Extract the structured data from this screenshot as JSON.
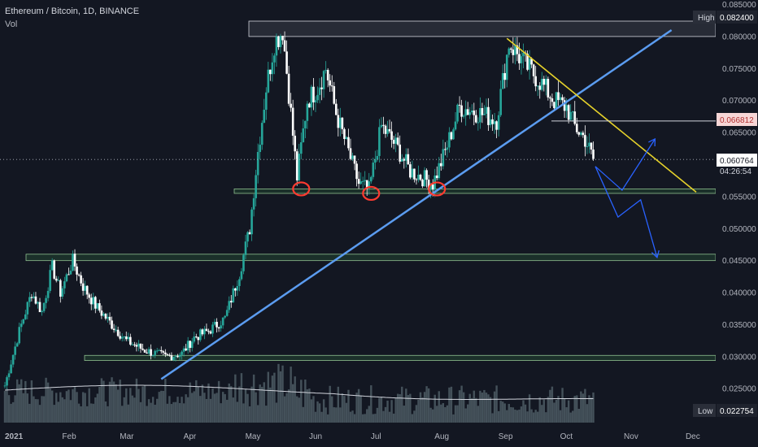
{
  "header": {
    "title": "Ethereum / Bitcoin, 1D, BINANCE",
    "volume_label": "Vol"
  },
  "chart_data": {
    "type": "candlestick",
    "symbol": "ETHBTC",
    "y_ticks": [
      "0.085000",
      "0.080000",
      "0.075000",
      "0.070000",
      "0.065000",
      "0.055000",
      "0.050000",
      "0.045000",
      "0.040000",
      "0.035000",
      "0.030000",
      "0.025000"
    ],
    "y_tick_values": [
      0.085,
      0.08,
      0.075,
      0.07,
      0.065,
      0.055,
      0.05,
      0.045,
      0.04,
      0.035,
      0.03,
      0.025
    ],
    "x_ticks": [
      "2021",
      "Feb",
      "Mar",
      "Apr",
      "May",
      "Jun",
      "Jul",
      "Aug",
      "Sep",
      "Oct",
      "Nov",
      "Dec"
    ],
    "ylim": [
      0.0197,
      0.0857
    ],
    "high": {
      "label": "High",
      "value": "0.082400"
    },
    "low": {
      "label": "Low",
      "value": "0.022754"
    },
    "current_price": "0.060764",
    "countdown": "04:26:54",
    "marked_level": "0.066812",
    "close_path": [
      [
        "2021-01-01",
        0.0255
      ],
      [
        "2021-01-08",
        0.034
      ],
      [
        "2021-01-14",
        0.04
      ],
      [
        "2021-01-19",
        0.037
      ],
      [
        "2021-01-24",
        0.044
      ],
      [
        "2021-01-28",
        0.04
      ],
      [
        "2021-02-03",
        0.045
      ],
      [
        "2021-02-08",
        0.041
      ],
      [
        "2021-02-14",
        0.038
      ],
      [
        "2021-02-22",
        0.035
      ],
      [
        "2021-03-01",
        0.0325
      ],
      [
        "2021-03-10",
        0.031
      ],
      [
        "2021-03-20",
        0.03
      ],
      [
        "2021-03-28",
        0.0305
      ],
      [
        "2021-04-03",
        0.033
      ],
      [
        "2021-04-10",
        0.034
      ],
      [
        "2021-04-18",
        0.036
      ],
      [
        "2021-04-25",
        0.043
      ],
      [
        "2021-04-30",
        0.05
      ],
      [
        "2021-05-04",
        0.062
      ],
      [
        "2021-05-08",
        0.072
      ],
      [
        "2021-05-12",
        0.079
      ],
      [
        "2021-05-16",
        0.081
      ],
      [
        "2021-05-20",
        0.068
      ],
      [
        "2021-05-23",
        0.058
      ],
      [
        "2021-05-28",
        0.07
      ],
      [
        "2021-06-02",
        0.072
      ],
      [
        "2021-06-06",
        0.075
      ],
      [
        "2021-06-11",
        0.068
      ],
      [
        "2021-06-16",
        0.063
      ],
      [
        "2021-06-22",
        0.057
      ],
      [
        "2021-06-27",
        0.056
      ],
      [
        "2021-07-03",
        0.066
      ],
      [
        "2021-07-10",
        0.063
      ],
      [
        "2021-07-17",
        0.059
      ],
      [
        "2021-07-23",
        0.058
      ],
      [
        "2021-07-28",
        0.057
      ],
      [
        "2021-08-03",
        0.062
      ],
      [
        "2021-08-10",
        0.069
      ],
      [
        "2021-08-20",
        0.068
      ],
      [
        "2021-08-28",
        0.067
      ],
      [
        "2021-09-03",
        0.079
      ],
      [
        "2021-09-10",
        0.076
      ],
      [
        "2021-09-18",
        0.073
      ],
      [
        "2021-09-25",
        0.07
      ],
      [
        "2021-10-01",
        0.069
      ],
      [
        "2021-10-05",
        0.066
      ],
      [
        "2021-10-10",
        0.064
      ],
      [
        "2021-10-14",
        0.0608
      ]
    ],
    "horizontal_zones": [
      {
        "y_range": [
          0.08,
          0.0824
        ]
      },
      {
        "y_range": [
          0.0555,
          0.0562
        ]
      },
      {
        "y_range": [
          0.045,
          0.046
        ]
      },
      {
        "y_range": [
          0.0294,
          0.0302
        ]
      }
    ],
    "trendline_blue": [
      [
        "2021-03-18",
        0.0265
      ],
      [
        "2021-11-21",
        0.081
      ]
    ],
    "trendline_yellow": [
      [
        "2021-09-02",
        0.0797
      ],
      [
        "2021-12-03",
        0.0557
      ]
    ],
    "projection_arrows": [
      [
        [
          "2021-10-15",
          0.0597
        ],
        [
          "2021-10-28",
          0.056
        ],
        [
          "2021-11-13",
          0.064
        ]
      ],
      [
        [
          "2021-10-15",
          0.0597
        ],
        [
          "2021-10-26",
          0.0518
        ],
        [
          "2021-11-06",
          0.0545
        ],
        [
          "2021-11-14",
          0.0455
        ]
      ]
    ],
    "circled_lows": [
      [
        "2021-05-25",
        0.0562
      ],
      [
        "2021-06-28",
        0.0555
      ],
      [
        "2021-07-30",
        0.0562
      ]
    ],
    "grid": false,
    "colors": {
      "background": "#131722",
      "up": "#26a69a",
      "down": "#ffffff",
      "zone_fill": "#1f3a2d",
      "zone_border": "#8fbf8f",
      "blue_line": "#5b9cf0",
      "yellow_line": "#e6d22b",
      "arrow": "#2962ff",
      "circle": "#ff3b30",
      "volume": "#5a6b72"
    }
  }
}
